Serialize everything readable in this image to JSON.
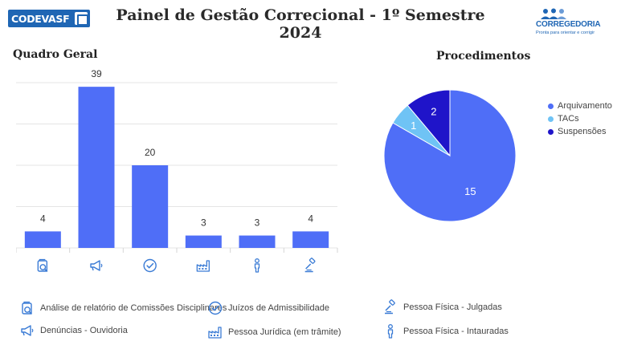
{
  "header": {
    "logo_left": "CODEVASF",
    "title": "Painel de Gestão Correcional - 1º Semestre 2024",
    "logo_right_brand": "CORREGEDORIA",
    "logo_right_tagline": "Pronta para orientar e corrigir"
  },
  "chart_data": [
    {
      "type": "bar",
      "title": "Quadro Geral",
      "categories": [
        "Análise de relatório de Comissões Disciplinares",
        "Denúncias - Ouvidoria",
        "Juízos de Admissibilidade",
        "Pessoa Jurídica (em trâmite)",
        "Pessoa Física - Intauradas",
        "Pessoa Física - Julgadas"
      ],
      "category_icons": [
        "folder-search-icon",
        "megaphone-icon",
        "check-circle-icon",
        "factory-icon",
        "person-icon",
        "gavel-icon"
      ],
      "values": [
        4,
        39,
        20,
        3,
        3,
        4
      ],
      "ylim": [
        0,
        40
      ],
      "grid": true,
      "color": "#4f6ef7"
    },
    {
      "type": "pie",
      "title": "Procedimentos",
      "labels": [
        "Arquivamento",
        "TACs",
        "Suspensões"
      ],
      "values": [
        15,
        1,
        2
      ],
      "colors": [
        "#4f6ef7",
        "#6fc3f5",
        "#1f14c9"
      ],
      "legend": "right"
    }
  ],
  "footer_legend": [
    {
      "icon": "folder-search-icon",
      "label": "Análise de relatório de Comissões Disciplinares"
    },
    {
      "icon": "megaphone-icon",
      "label": "Denúncias - Ouvidoria"
    },
    {
      "icon": "check-circle-icon",
      "label": "Juízos de Admissibilidade"
    },
    {
      "icon": "factory-icon",
      "label": "Pessoa Jurídica (em trâmite)"
    },
    {
      "icon": "gavel-icon",
      "label": "Pessoa Física - Julgadas"
    },
    {
      "icon": "person-icon",
      "label": "Pessoa Física - Intauradas"
    }
  ]
}
